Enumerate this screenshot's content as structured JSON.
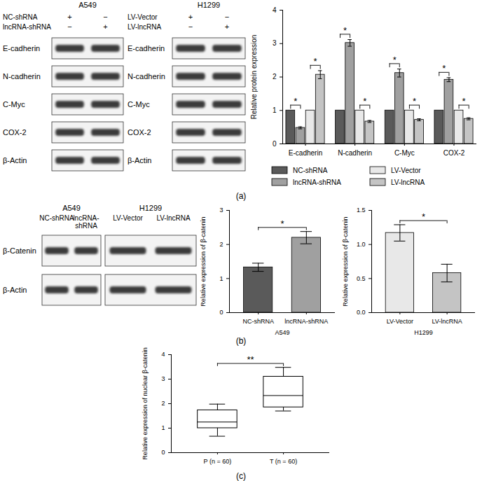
{
  "chart_data": [
    {
      "type": "bar",
      "y_label": "Relative protein expression",
      "categories": [
        "E-cadherin",
        "N-cadherin",
        "C-Myc",
        "COX-2"
      ],
      "series": [
        {
          "name": "NC-shRNA",
          "color": "#5a5a5a",
          "values": [
            1,
            1,
            1,
            1
          ]
        },
        {
          "name": "lncRNA-shRNA",
          "color": "#a0a0a0",
          "values": [
            0.48,
            3.02,
            2.12,
            1.92
          ],
          "errors": [
            0.03,
            0.1,
            0.12,
            0.06
          ]
        },
        {
          "name": "LV-Vector",
          "color": "#e8e8e8",
          "values": [
            1,
            1,
            1,
            1
          ]
        },
        {
          "name": "LV-lncRNA",
          "color": "#c4c4c4",
          "values": [
            2.07,
            0.67,
            0.72,
            0.75
          ],
          "errors": [
            0.12,
            0.03,
            0.03,
            0.03
          ]
        }
      ],
      "ylim": [
        0,
        4
      ],
      "yticks": [
        0,
        1,
        2,
        3,
        4
      ],
      "legend": "bottom",
      "annotations": [
        {
          "text": "*",
          "category": "E-cadherin",
          "between": [
            "NC-shRNA",
            "lncRNA-shRNA"
          ]
        },
        {
          "text": "*",
          "category": "E-cadherin",
          "between": [
            "LV-Vector",
            "LV-lncRNA"
          ]
        },
        {
          "text": "*",
          "category": "N-cadherin",
          "between": [
            "NC-shRNA",
            "lncRNA-shRNA"
          ]
        },
        {
          "text": "*",
          "category": "N-cadherin",
          "between": [
            "LV-Vector",
            "LV-lncRNA"
          ]
        },
        {
          "text": "*",
          "category": "C-Myc",
          "between": [
            "NC-shRNA",
            "lncRNA-shRNA"
          ]
        },
        {
          "text": "*",
          "category": "C-Myc",
          "between": [
            "LV-Vector",
            "LV-lncRNA"
          ]
        },
        {
          "text": "*",
          "category": "COX-2",
          "between": [
            "NC-shRNA",
            "lncRNA-shRNA"
          ]
        },
        {
          "text": "*",
          "category": "COX-2",
          "between": [
            "LV-Vector",
            "LV-lncRNA"
          ]
        }
      ]
    },
    {
      "type": "bar",
      "x_label": "A549",
      "y_label": "Relative expression of β-catenin",
      "categories": [
        "NC-shRNA",
        "lncRNA-shRNA"
      ],
      "values": [
        1.33,
        2.2
      ],
      "errors": [
        0.12,
        0.18
      ],
      "colors": [
        "#5a5a5a",
        "#a0a0a0"
      ],
      "ylim": [
        0,
        3
      ],
      "yticks": [
        0,
        1,
        2,
        3
      ],
      "annotations": [
        {
          "text": "*",
          "between": [
            "NC-shRNA",
            "lncRNA-shRNA"
          ]
        }
      ]
    },
    {
      "type": "bar",
      "x_label": "H1299",
      "y_label": "Relative expression of β-catenin",
      "categories": [
        "LV-Vector",
        "LV-lncRNA"
      ],
      "values": [
        1.17,
        0.58
      ],
      "errors": [
        0.12,
        0.13
      ],
      "colors": [
        "#e8e8e8",
        "#c4c4c4"
      ],
      "ylim": [
        0,
        1.5
      ],
      "yticks": [
        {
          "value": 0,
          "label": "0.0"
        },
        0.5,
        {
          "value": 1,
          "label": "1.0"
        },
        1.5
      ],
      "annotations": [
        {
          "text": "*",
          "between": [
            "LV-Vector",
            "LV-lncRNA"
          ]
        }
      ]
    },
    {
      "type": "box",
      "y_label": "Relative expression of nuclear β-catenin",
      "categories": [
        "P (n = 60)",
        "T (n = 60)"
      ],
      "min": [
        0.67,
        1.7
      ],
      "q1": [
        1.0,
        1.85
      ],
      "median": [
        1.25,
        2.33
      ],
      "q3": [
        1.73,
        3.1
      ],
      "max": [
        1.98,
        3.48
      ],
      "color": "#000000",
      "ylim": [
        0,
        4
      ],
      "yticks": [
        0,
        1,
        2,
        3,
        4
      ],
      "annotations": [
        {
          "text": "**",
          "between": [
            "P (n = 60)",
            "T (n = 60)"
          ]
        }
      ]
    }
  ],
  "blots": [
    {
      "title": "A549",
      "conditions": [
        {
          "name": "NC-shRNA",
          "signs": [
            "+",
            "−"
          ]
        },
        {
          "name": "lncRNA-shRNA",
          "signs": [
            "−",
            "+"
          ]
        }
      ],
      "bands": [
        "E-cadherin",
        "N-cadherin",
        "C-Myc",
        "COX-2",
        "β-Actin"
      ]
    },
    {
      "title": "H1299",
      "conditions": [
        {
          "name": "LV-Vector",
          "signs": [
            "+",
            "−"
          ]
        },
        {
          "name": "LV-lncRNA",
          "signs": [
            "−",
            "+"
          ]
        }
      ],
      "bands": [
        "E-cadherin",
        "N-cadherin",
        "C-Myc",
        "COX-2",
        "β-Actin"
      ]
    },
    {
      "title": "A549",
      "lanes": [
        "NC-shRNA",
        "lncRNA-shRNA"
      ],
      "bands": [
        "β-Catenin",
        "β-Actin"
      ]
    },
    {
      "title": "H1299",
      "lanes": [
        "LV-Vector",
        "LV-lncRNA"
      ],
      "bands": [
        null,
        null
      ]
    }
  ],
  "panel_labels": [
    "(a)",
    "(b)",
    "(c)"
  ]
}
